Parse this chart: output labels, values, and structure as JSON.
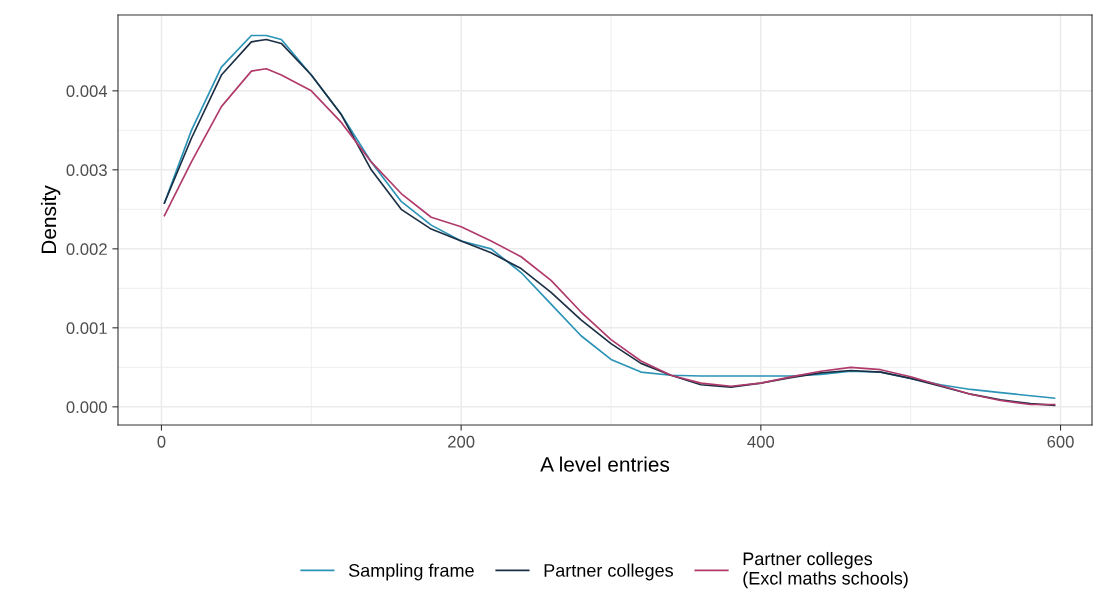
{
  "chart_data": {
    "type": "line",
    "xlabel": "A level entries",
    "ylabel": "Density",
    "x": [
      2,
      20,
      40,
      60,
      70,
      80,
      100,
      120,
      140,
      160,
      180,
      200,
      220,
      240,
      260,
      280,
      300,
      320,
      340,
      360,
      380,
      400,
      420,
      440,
      460,
      480,
      500,
      520,
      540,
      560,
      580,
      596
    ],
    "series": [
      {
        "name": "Sampling frame",
        "color": "#2a93b6",
        "values": [
          0.00258,
          0.0035,
          0.0043,
          0.0047,
          0.0047,
          0.00465,
          0.0042,
          0.0037,
          0.0031,
          0.0026,
          0.0023,
          0.0021,
          0.002,
          0.0017,
          0.0013,
          0.0009,
          0.0006,
          0.00044,
          0.0004,
          0.00039,
          0.00039,
          0.00039,
          0.00039,
          0.00041,
          0.00045,
          0.00044,
          0.00036,
          0.00028,
          0.00022,
          0.00018,
          0.00014,
          0.00011
        ]
      },
      {
        "name": "Partner colleges",
        "color": "#1c2f45",
        "values": [
          0.00258,
          0.0034,
          0.0042,
          0.00462,
          0.00465,
          0.0046,
          0.0042,
          0.0037,
          0.003,
          0.0025,
          0.00225,
          0.0021,
          0.00195,
          0.00175,
          0.00145,
          0.0011,
          0.0008,
          0.00055,
          0.0004,
          0.00028,
          0.00025,
          0.0003,
          0.00037,
          0.00043,
          0.00046,
          0.00044,
          0.00036,
          0.00026,
          0.00016,
          9e-05,
          4e-05,
          2e-05
        ]
      },
      {
        "name": "Partner colleges\n(Excl maths schools)",
        "color": "#b03a6a",
        "values": [
          0.00242,
          0.0031,
          0.0038,
          0.00425,
          0.00428,
          0.0042,
          0.004,
          0.0036,
          0.0031,
          0.0027,
          0.0024,
          0.00228,
          0.0021,
          0.0019,
          0.0016,
          0.0012,
          0.00085,
          0.00058,
          0.0004,
          0.0003,
          0.00026,
          0.0003,
          0.00038,
          0.00045,
          0.0005,
          0.00047,
          0.00038,
          0.00027,
          0.00016,
          8e-05,
          3e-05,
          3e-05
        ]
      }
    ],
    "xlim": [
      -29,
      621
    ],
    "ylim": [
      -0.00023,
      0.00496
    ],
    "xticks": [
      0,
      200,
      400,
      600
    ],
    "yticks": [
      {
        "value": 0,
        "label": "0.000"
      },
      {
        "value": 0.001,
        "label": "0.001"
      },
      {
        "value": 0.002,
        "label": "0.002"
      },
      {
        "value": 0.003,
        "label": "0.003"
      },
      {
        "value": 0.004,
        "label": "0.004"
      }
    ],
    "grid": true,
    "legend": "bottom",
    "marker": "none",
    "line_style": "solid"
  }
}
